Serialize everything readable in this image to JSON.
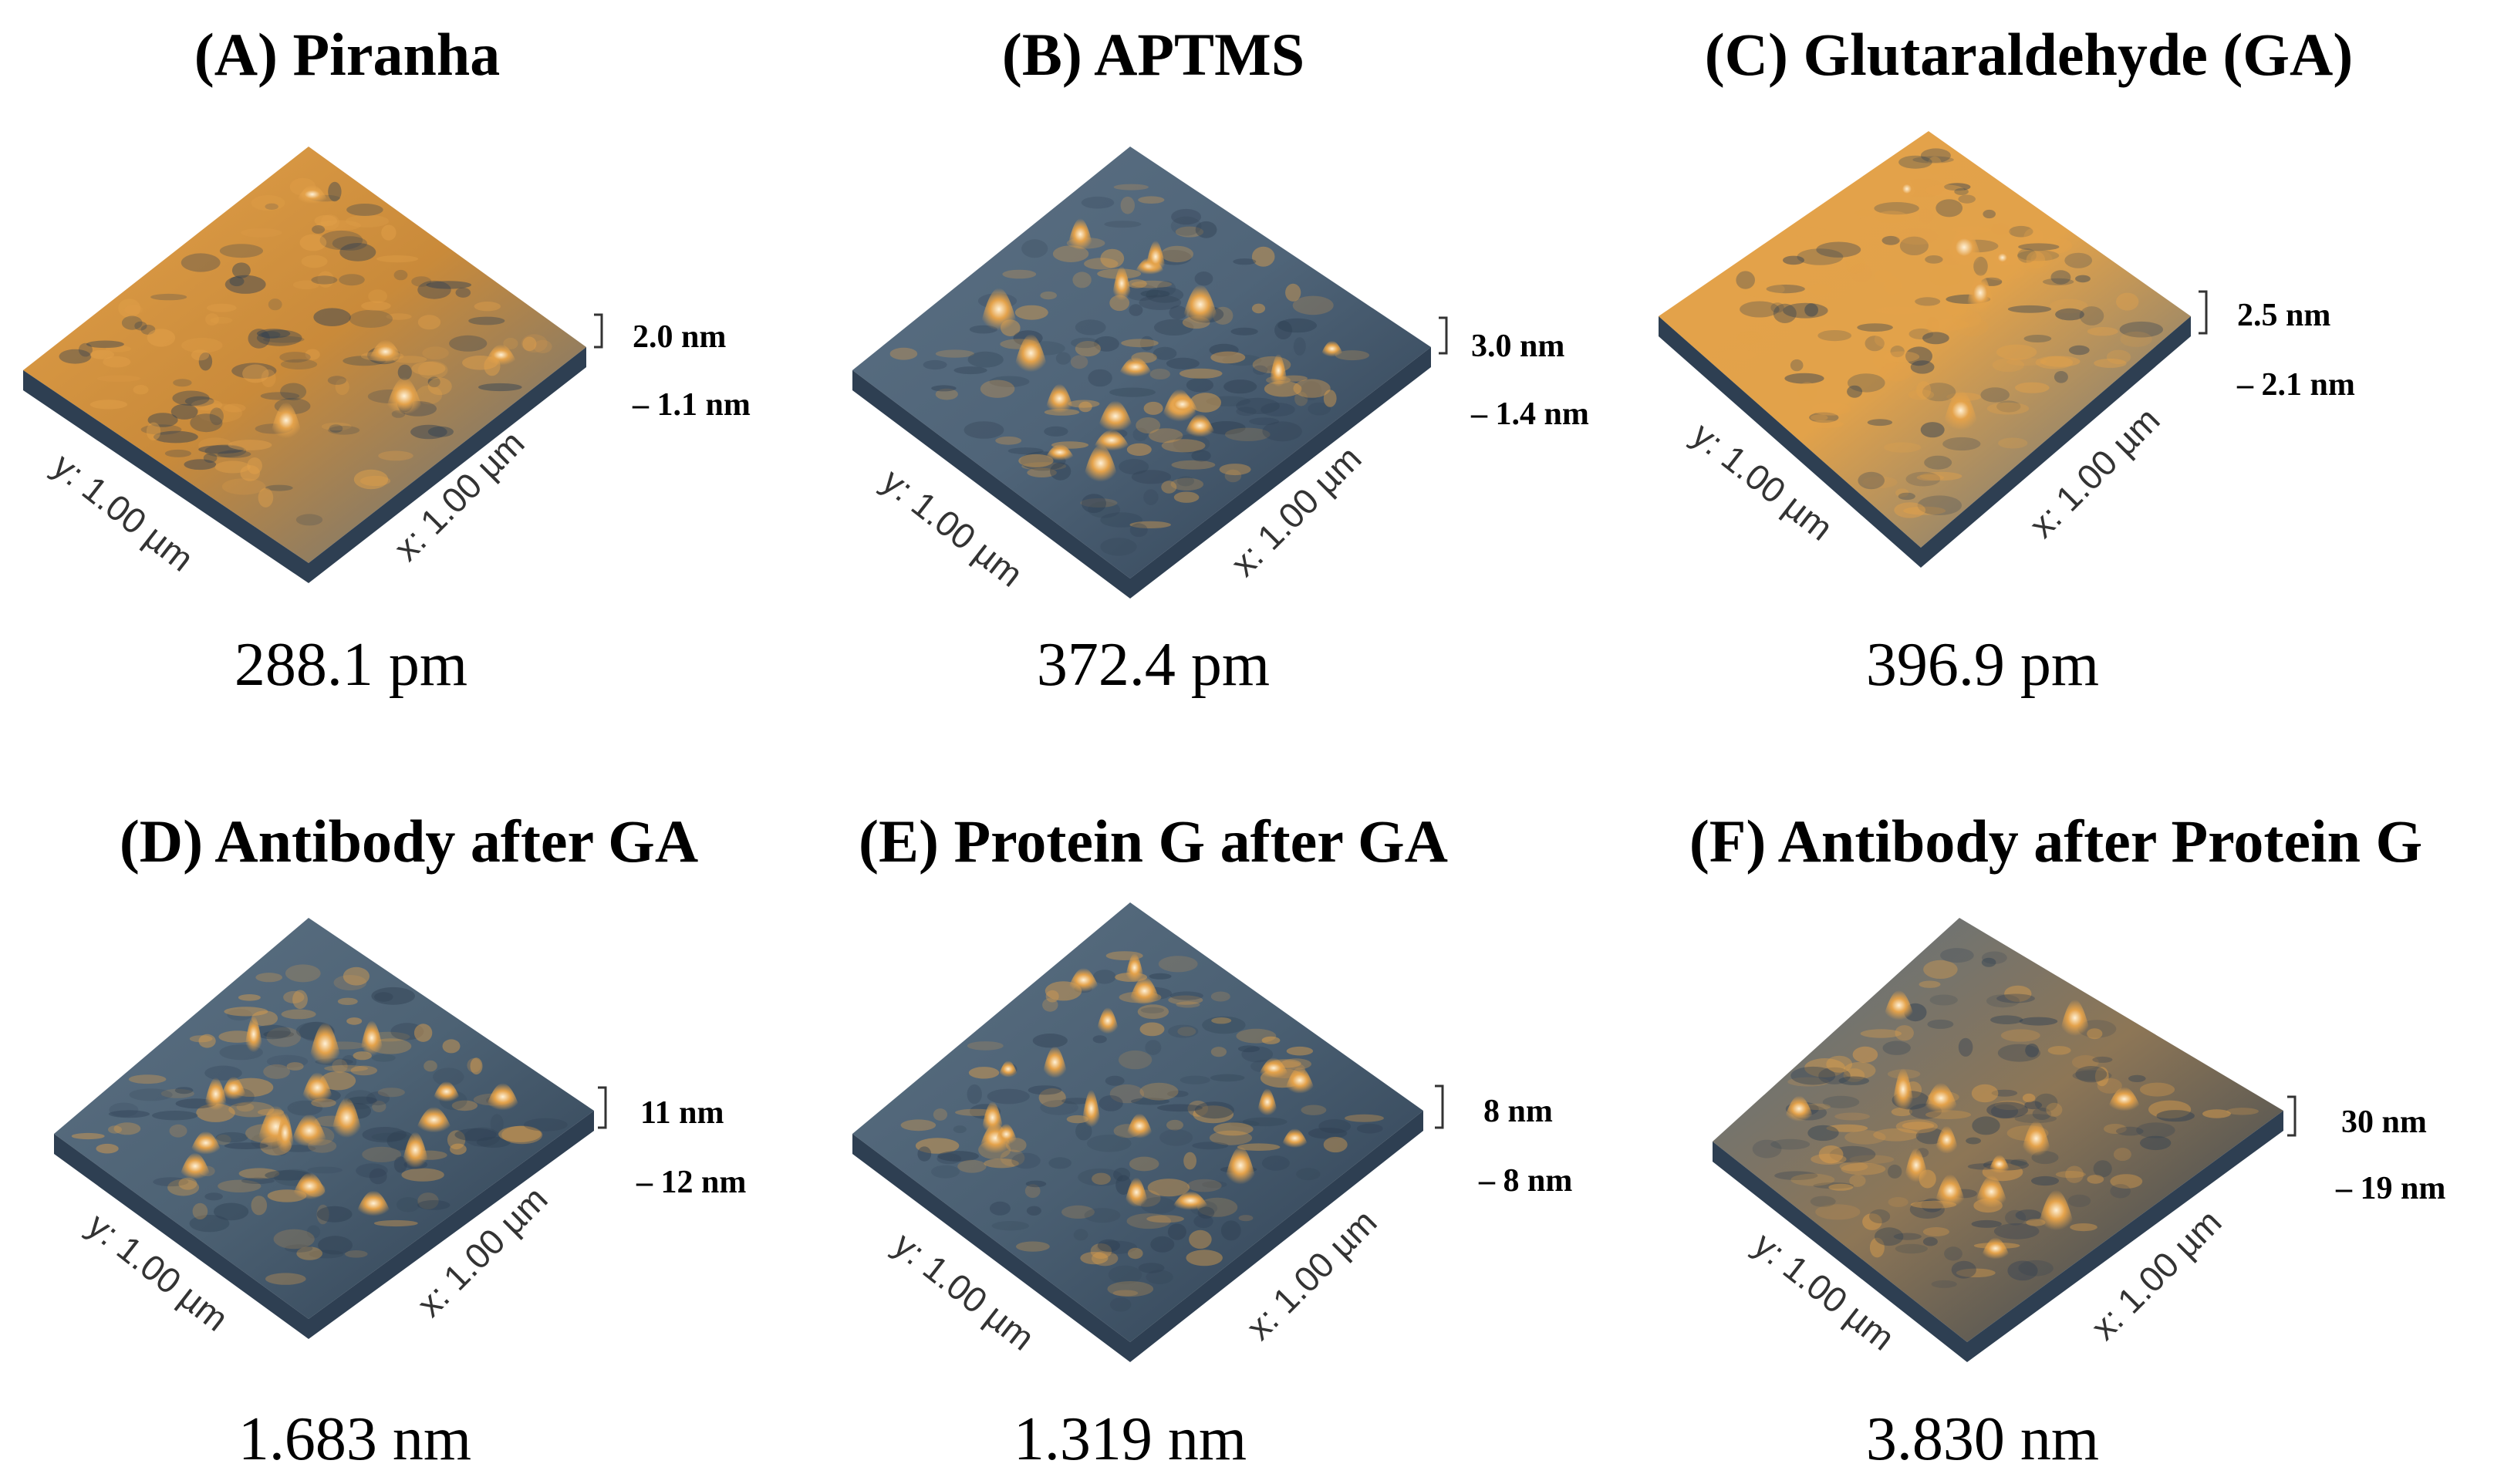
{
  "figure": {
    "panels": [
      {
        "id": "A",
        "title": "(A) Piranha",
        "roughness": "288.1 pm",
        "z_max": "2.0 nm",
        "z_min": "– 1.1 nm",
        "x_axis": "x: 1.00 µm",
        "y_axis": "y: 1.00 µm",
        "surface": "orange-dominant",
        "base_color": "#c98a3a"
      },
      {
        "id": "B",
        "title": "(B) APTMS",
        "roughness": "372.4 pm",
        "z_max": "3.0 nm",
        "z_min": "– 1.4 nm",
        "x_axis": "x: 1.00 µm",
        "y_axis": "y: 1.00 µm",
        "surface": "blue-with-peaks",
        "base_color": "#4f6478"
      },
      {
        "id": "C",
        "title": "(C) Glutaraldehyde (GA)",
        "roughness": "396.9 pm",
        "z_max": "2.5 nm",
        "z_min": "– 2.1 nm",
        "x_axis": "x: 1.00 µm",
        "y_axis": "y: 1.00 µm",
        "surface": "smooth-orange",
        "base_color": "#e2a24a"
      },
      {
        "id": "D",
        "title": "(D) Antibody after GA",
        "roughness": "1.683 nm",
        "z_max": "11 nm",
        "z_min": "– 12 nm",
        "x_axis": "x: 1.00 µm",
        "y_axis": "y: 1.00 µm",
        "surface": "blue-with-peaks",
        "base_color": "#4d6274"
      },
      {
        "id": "E",
        "title": "(E) Protein G after GA",
        "roughness": "1.319 nm",
        "z_max": "8 nm",
        "z_min": "– 8 nm",
        "x_axis": "x: 1.00 µm",
        "y_axis": "y: 1.00 µm",
        "surface": "blue-with-peaks",
        "base_color": "#4a5f72"
      },
      {
        "id": "F",
        "title": "(F) Antibody after Protein G",
        "roughness": "3.830 nm",
        "z_max": "30 nm",
        "z_min": "– 19 nm",
        "x_axis": "x: 1.00 µm",
        "y_axis": "y: 1.00 µm",
        "surface": "mixed-smooth",
        "base_color": "#8d7656"
      }
    ],
    "colors": {
      "low": "#2e3f52",
      "mid": "#5c7184",
      "high": "#e4a24a",
      "peak": "#fff1d6"
    }
  }
}
